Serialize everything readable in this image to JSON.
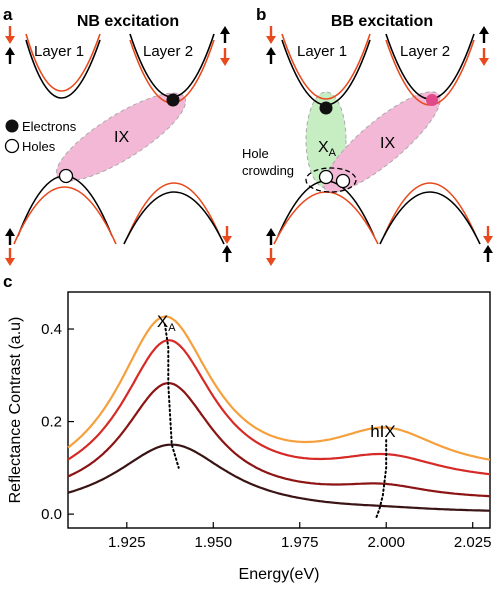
{
  "panel_a": {
    "letter": "a",
    "title": "NB excitation",
    "layer1": "Layer 1",
    "layer2": "Layer 2",
    "exciton": "IX",
    "legend_electrons": "Electrons",
    "legend_holes": "Holes"
  },
  "panel_b": {
    "letter": "b",
    "title": "BB excitation",
    "layer1": "Layer 1",
    "layer2": "Layer 2",
    "exciton_intra": "X",
    "exciton_intra_sub": "A",
    "exciton_inter": "IX",
    "hole_crowding_1": "Hole",
    "hole_crowding_2": "crowding"
  },
  "panel_c": {
    "letter": "c"
  },
  "colors": {
    "band_black": "#000000",
    "band_orange": "#e8491d",
    "ix_pink": "#f2b8d6",
    "xa_green": "#c7edc2",
    "spin_up": "#000000",
    "spin_down": "#e8491d"
  },
  "chart_data": {
    "type": "line",
    "xlabel": "Energy(eV)",
    "ylabel": "Reflectance Contrast (a.u)",
    "xlim": [
      1.908,
      2.03
    ],
    "ylim": [
      -0.03,
      0.48
    ],
    "xticks": [
      "1.925",
      "1.950",
      "1.975",
      "2.000",
      "2.025"
    ],
    "yticks": [
      "0.0",
      "0.2",
      "0.4"
    ],
    "annotations": {
      "xa_main": "X",
      "xa_sub": "A",
      "hix": "hIX"
    },
    "series": [
      {
        "color": "#f5a03c",
        "x0_1": 1.936,
        "w1": 0.017,
        "a1": 0.37,
        "x0_2": 2.0,
        "w2": 0.02,
        "a2": 0.095,
        "base0": 0.04,
        "slope": 0.3
      },
      {
        "color": "#d62a26",
        "x0_1": 1.937,
        "w1": 0.0165,
        "a1": 0.33,
        "x0_2": 2.0,
        "w2": 0.02,
        "a2": 0.055,
        "base0": 0.035,
        "slope": 0.2
      },
      {
        "color": "#8c1414",
        "x0_1": 1.937,
        "w1": 0.016,
        "a1": 0.26,
        "x0_2": 1.999,
        "w2": 0.016,
        "a2": 0.025,
        "base0": 0.02,
        "slope": 0.05
      },
      {
        "color": "#3a1414",
        "x0_1": 1.938,
        "w1": 0.02,
        "a1": 0.15,
        "x0_2": 2.0,
        "w2": 0.015,
        "a2": 0.003,
        "base0": 0.0,
        "slope": 0.0
      }
    ],
    "dotted_trends": [
      {
        "x": [
          1.936,
          1.937,
          1.937,
          1.938,
          1.94
        ],
        "y": [
          0.41,
          0.36,
          0.28,
          0.15,
          0.1
        ]
      },
      {
        "x": [
          2.0,
          2.0,
          1.999,
          1.998,
          1.997
        ],
        "y": [
          0.16,
          0.1,
          0.04,
          0.01,
          -0.01
        ]
      }
    ]
  }
}
